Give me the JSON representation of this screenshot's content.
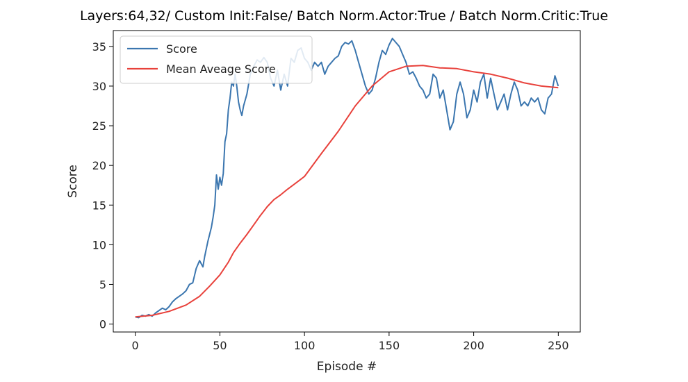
{
  "chart_data": {
    "type": "line",
    "title": "Layers:64,32/ Custom Init:False/ Batch Norm.Actor:True / Batch Norm.Critic:True",
    "xlabel": "Episode #",
    "ylabel": "Score",
    "xlim": [
      -13,
      263
    ],
    "ylim": [
      -1,
      37
    ],
    "xticks": [
      0,
      50,
      100,
      150,
      200,
      250
    ],
    "yticks": [
      0,
      5,
      10,
      15,
      20,
      25,
      30,
      35
    ],
    "grid": false,
    "legend": {
      "location": "upper-left",
      "entries": [
        "Score",
        "Mean Aveage Score"
      ]
    },
    "series": [
      {
        "name": "Score",
        "color": "#3b76af",
        "points": [
          [
            0,
            0.9
          ],
          [
            2,
            0.8
          ],
          [
            4,
            1.1
          ],
          [
            6,
            1.0
          ],
          [
            8,
            1.2
          ],
          [
            10,
            1.0
          ],
          [
            12,
            1.4
          ],
          [
            14,
            1.7
          ],
          [
            16,
            2.0
          ],
          [
            18,
            1.8
          ],
          [
            20,
            2.2
          ],
          [
            22,
            2.8
          ],
          [
            24,
            3.2
          ],
          [
            26,
            3.5
          ],
          [
            28,
            3.8
          ],
          [
            30,
            4.2
          ],
          [
            32,
            5.0
          ],
          [
            34,
            5.2
          ],
          [
            36,
            7.0
          ],
          [
            38,
            8.0
          ],
          [
            40,
            7.2
          ],
          [
            41,
            8.5
          ],
          [
            43,
            10.5
          ],
          [
            45,
            12.2
          ],
          [
            46,
            13.5
          ],
          [
            47,
            15.0
          ],
          [
            48,
            18.8
          ],
          [
            49,
            17.0
          ],
          [
            50,
            18.5
          ],
          [
            51,
            17.5
          ],
          [
            52,
            19.0
          ],
          [
            53,
            23.0
          ],
          [
            54,
            24.0
          ],
          [
            55,
            27.0
          ],
          [
            56,
            28.5
          ],
          [
            57,
            30.5
          ],
          [
            58,
            30.0
          ],
          [
            59,
            31.5
          ],
          [
            60,
            30.0
          ],
          [
            61,
            28.0
          ],
          [
            62,
            27.0
          ],
          [
            63,
            26.3
          ],
          [
            64,
            27.5
          ],
          [
            66,
            29.0
          ],
          [
            68,
            31.5
          ],
          [
            70,
            32.5
          ],
          [
            72,
            33.3
          ],
          [
            74,
            33.0
          ],
          [
            76,
            33.6
          ],
          [
            78,
            33.0
          ],
          [
            80,
            31.0
          ],
          [
            82,
            30.0
          ],
          [
            84,
            32.0
          ],
          [
            86,
            29.5
          ],
          [
            88,
            31.5
          ],
          [
            90,
            30.0
          ],
          [
            92,
            33.5
          ],
          [
            94,
            33.0
          ],
          [
            96,
            34.5
          ],
          [
            98,
            34.8
          ],
          [
            100,
            33.5
          ],
          [
            102,
            33.0
          ],
          [
            104,
            32.0
          ],
          [
            106,
            33.0
          ],
          [
            108,
            32.5
          ],
          [
            110,
            33.0
          ],
          [
            112,
            31.5
          ],
          [
            114,
            32.5
          ],
          [
            116,
            33.0
          ],
          [
            118,
            33.5
          ],
          [
            120,
            33.8
          ],
          [
            122,
            35.0
          ],
          [
            124,
            35.5
          ],
          [
            126,
            35.3
          ],
          [
            128,
            35.7
          ],
          [
            130,
            34.5
          ],
          [
            132,
            33.0
          ],
          [
            134,
            31.5
          ],
          [
            136,
            30.0
          ],
          [
            138,
            29.0
          ],
          [
            140,
            29.5
          ],
          [
            142,
            31.0
          ],
          [
            144,
            33.0
          ],
          [
            146,
            34.5
          ],
          [
            148,
            34.0
          ],
          [
            150,
            35.2
          ],
          [
            152,
            36.0
          ],
          [
            154,
            35.5
          ],
          [
            156,
            35.0
          ],
          [
            158,
            34.0
          ],
          [
            160,
            33.0
          ],
          [
            162,
            31.5
          ],
          [
            164,
            31.8
          ],
          [
            166,
            31.0
          ],
          [
            168,
            30.0
          ],
          [
            170,
            29.5
          ],
          [
            172,
            28.5
          ],
          [
            174,
            29.0
          ],
          [
            176,
            31.5
          ],
          [
            178,
            31.0
          ],
          [
            180,
            28.5
          ],
          [
            182,
            29.5
          ],
          [
            184,
            27.0
          ],
          [
            186,
            24.5
          ],
          [
            188,
            25.5
          ],
          [
            190,
            29.0
          ],
          [
            192,
            30.5
          ],
          [
            194,
            29.0
          ],
          [
            196,
            26.0
          ],
          [
            198,
            27.0
          ],
          [
            200,
            29.5
          ],
          [
            202,
            28.0
          ],
          [
            204,
            30.5
          ],
          [
            206,
            31.5
          ],
          [
            208,
            28.5
          ],
          [
            210,
            31.0
          ],
          [
            212,
            29.0
          ],
          [
            214,
            27.0
          ],
          [
            216,
            28.0
          ],
          [
            218,
            29.0
          ],
          [
            220,
            27.0
          ],
          [
            222,
            29.0
          ],
          [
            224,
            30.5
          ],
          [
            226,
            29.5
          ],
          [
            228,
            27.5
          ],
          [
            230,
            28.0
          ],
          [
            232,
            27.5
          ],
          [
            234,
            28.5
          ],
          [
            236,
            28.0
          ],
          [
            238,
            28.5
          ],
          [
            240,
            27.0
          ],
          [
            242,
            26.5
          ],
          [
            244,
            28.5
          ],
          [
            246,
            29.0
          ],
          [
            248,
            31.3
          ],
          [
            250,
            30.0
          ]
        ]
      },
      {
        "name": "Mean Aveage Score",
        "color": "#e8413b",
        "points": [
          [
            0,
            0.9
          ],
          [
            10,
            1.1
          ],
          [
            20,
            1.6
          ],
          [
            30,
            2.4
          ],
          [
            38,
            3.5
          ],
          [
            44,
            4.8
          ],
          [
            50,
            6.2
          ],
          [
            55,
            7.8
          ],
          [
            58,
            9.0
          ],
          [
            62,
            10.2
          ],
          [
            66,
            11.3
          ],
          [
            70,
            12.5
          ],
          [
            74,
            13.7
          ],
          [
            78,
            14.8
          ],
          [
            82,
            15.7
          ],
          [
            86,
            16.3
          ],
          [
            90,
            17.0
          ],
          [
            95,
            17.8
          ],
          [
            100,
            18.6
          ],
          [
            110,
            21.5
          ],
          [
            120,
            24.3
          ],
          [
            130,
            27.5
          ],
          [
            140,
            30.0
          ],
          [
            150,
            31.8
          ],
          [
            160,
            32.5
          ],
          [
            170,
            32.6
          ],
          [
            180,
            32.3
          ],
          [
            190,
            32.2
          ],
          [
            200,
            31.8
          ],
          [
            210,
            31.5
          ],
          [
            220,
            31.0
          ],
          [
            230,
            30.4
          ],
          [
            240,
            30.0
          ],
          [
            250,
            29.8
          ]
        ]
      }
    ]
  }
}
